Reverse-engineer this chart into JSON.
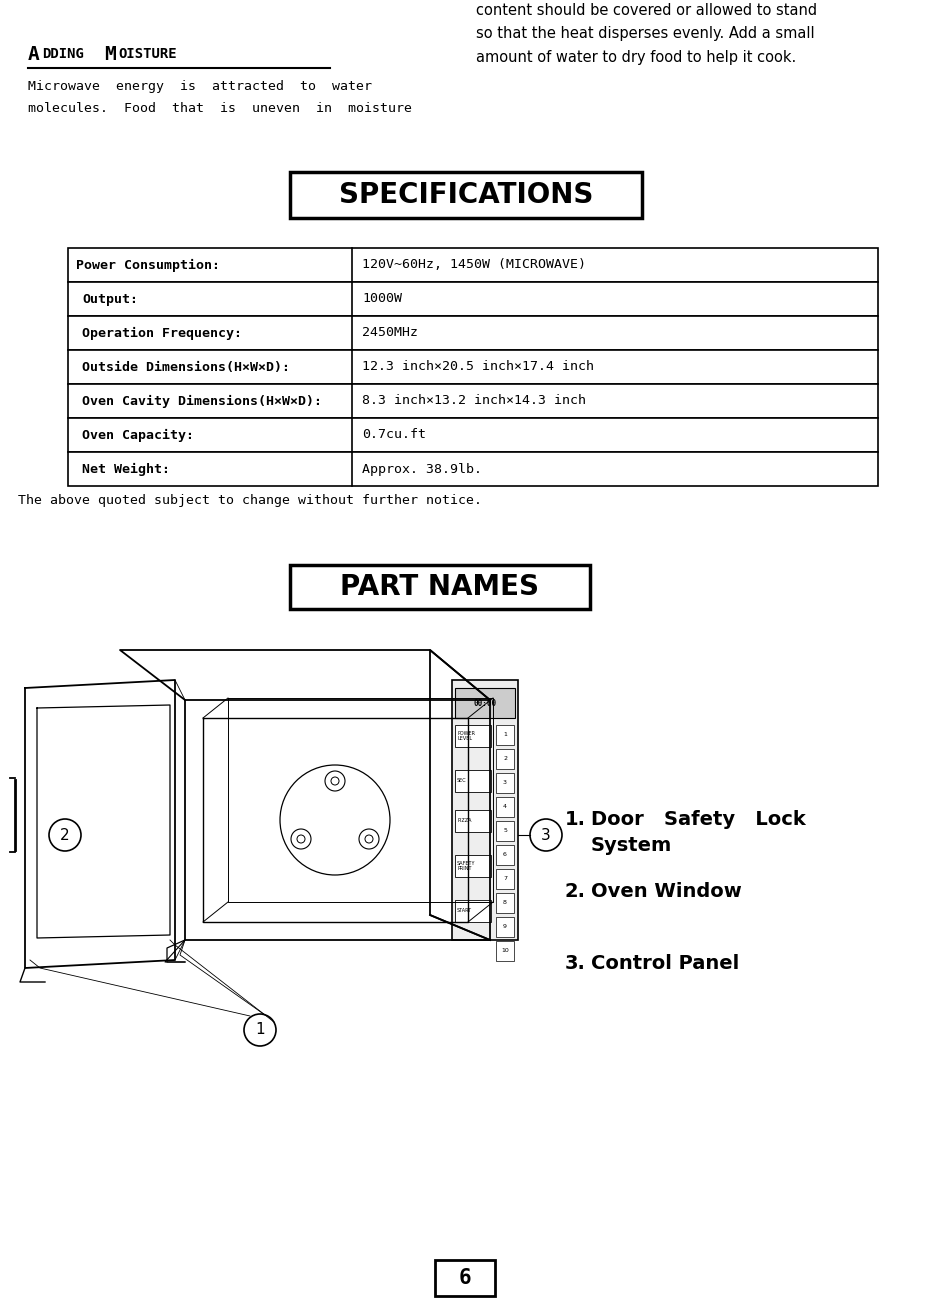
{
  "page_width": 9.32,
  "page_height": 13.12,
  "bg_color": "#ffffff",
  "section_number": "6",
  "adding_moisture_title_A": "A",
  "adding_moisture_title_rest": "DDING",
  "adding_moisture_title_M": "M",
  "adding_moisture_title_oisture": "OISTURE",
  "text_left_col": "Microwave  energy  is  attracted  to  water\nmolecules.  Food  that  is  uneven  in  moisture",
  "text_right_col": "content should be covered or allowed to stand\nso that the heat disperses evenly. Add a small\namount of water to dry food to help it cook.",
  "spec_title": "SPECIFICATIONS",
  "spec_title_fontsize": 20,
  "spec_rows": [
    [
      "Power Consumption:",
      "120V~60Hz, 1450W (MICROWAVE)"
    ],
    [
      "Output:",
      "1000W"
    ],
    [
      "Operation Frequency:",
      "2450MHz"
    ],
    [
      "Outside Dimensions(H×W×D):",
      "12.3 inch×20.5 inch×17.4 inch"
    ],
    [
      "Oven Cavity Dimensions(H×W×D):",
      "8.3 inch×13.2 inch×14.3 inch"
    ],
    [
      "Oven Capacity:",
      "0.7cu.ft"
    ],
    [
      "Net Weight:",
      "Approx. 38.9lb."
    ]
  ],
  "spec_note": "The above quoted subject to change without further notice.",
  "part_names_title": "PART NAMES",
  "part_names_fontsize": 20,
  "part_list": [
    "Door   Safety   Lock\nSystem",
    "Oven Window",
    "Control Panel"
  ],
  "part_list_fontsize": 14
}
